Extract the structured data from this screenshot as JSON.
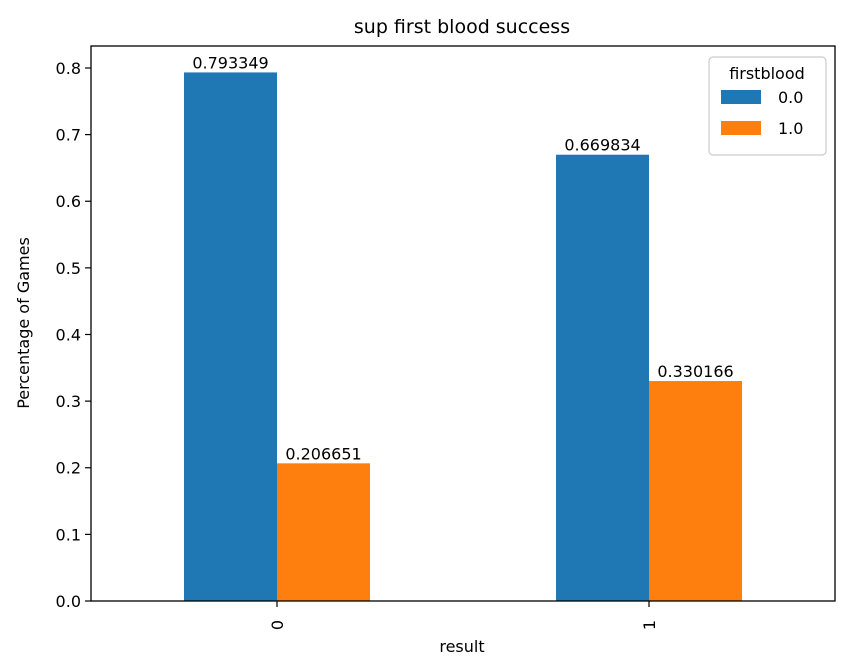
{
  "chart_data": {
    "type": "bar",
    "title": "sup first blood success",
    "xlabel": "result",
    "ylabel": "Percentage of Games",
    "categories": [
      "0",
      "1"
    ],
    "series": [
      {
        "name": "0.0",
        "values": [
          0.793349,
          0.669834
        ],
        "labels": [
          "0.793349",
          "0.669834"
        ],
        "color": "#1f77b4"
      },
      {
        "name": "1.0",
        "values": [
          0.206651,
          0.330166
        ],
        "labels": [
          "0.206651",
          "0.330166"
        ],
        "color": "#ff7f0e"
      }
    ],
    "legend": {
      "title": "firstblood",
      "placement": "top-right"
    },
    "ylim": [
      0,
      0.833
    ],
    "yticks": [
      0.0,
      0.1,
      0.2,
      0.3,
      0.4,
      0.5,
      0.6,
      0.7,
      0.8
    ],
    "ytick_labels": [
      "0.0",
      "0.1",
      "0.2",
      "0.3",
      "0.4",
      "0.5",
      "0.6",
      "0.7",
      "0.8"
    ],
    "xtick_rotation": "vertical",
    "grid": false
  }
}
